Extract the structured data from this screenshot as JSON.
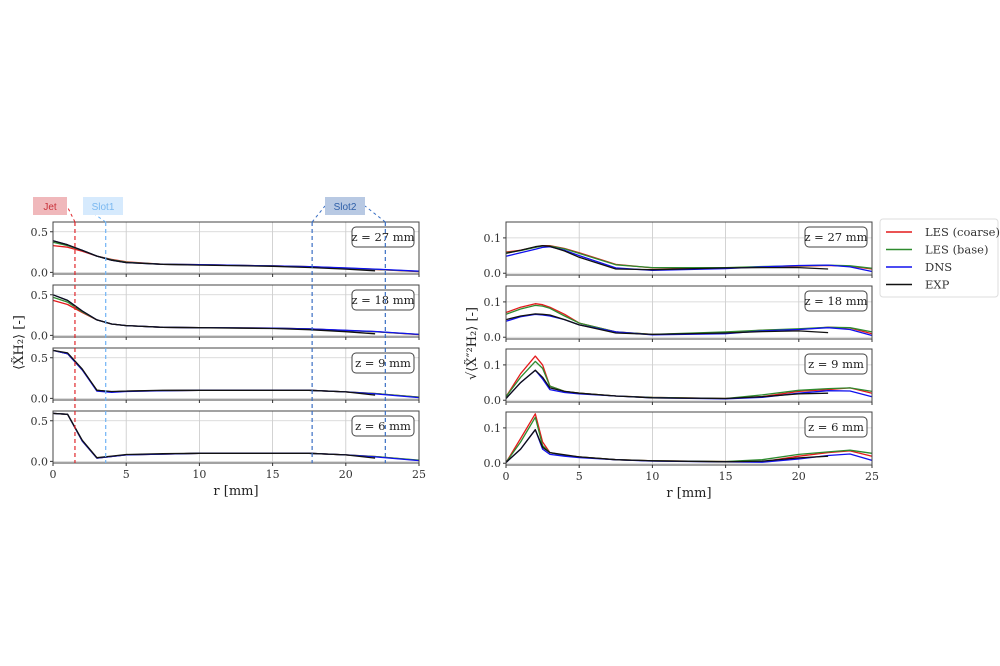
{
  "legend": {
    "placement": "right",
    "entries": [
      {
        "name": "LES (coarse)",
        "color": "#e41a1c"
      },
      {
        "name": "LES (base)",
        "color": "#2e8b2e"
      },
      {
        "name": "DNS",
        "color": "#1010ee"
      },
      {
        "name": "EXP",
        "color": "#111111"
      }
    ]
  },
  "annotations": [
    {
      "label": "Jet",
      "r": [
        1.5
      ],
      "color": "#e0262b",
      "box": "#f0b8bb",
      "text": "#c8323a"
    },
    {
      "label": "Slot1",
      "r": [
        3.6
      ],
      "color": "#6fb3f5",
      "box": "#d6eafd",
      "text": "#7ab8f0"
    },
    {
      "label": "Slot2",
      "r": [
        17.7,
        22.7
      ],
      "color": "#3a6fc4",
      "box": "#b8c9e3",
      "text": "#2e5fa8"
    }
  ],
  "chart_data": [
    {
      "type": "line",
      "xlabel": "r [mm]",
      "ylabel": "⟨X̃H₂⟩ [-]",
      "xlim": [
        0,
        25
      ],
      "ylim": [
        -0.02,
        0.62
      ],
      "xticks": [
        "0",
        "5",
        "10",
        "15",
        "20",
        "25"
      ],
      "yticks": [
        "0.0",
        "0.5"
      ],
      "grid": true,
      "x": [
        0,
        1,
        2,
        3,
        4,
        5,
        7.5,
        10,
        15,
        17.5,
        20,
        22,
        25
      ],
      "panels": [
        {
          "label": "z = 27 mm",
          "series": [
            {
              "name": "LES (coarse)",
              "values": [
                0.33,
                0.31,
                0.26,
                0.2,
                0.16,
                0.13,
                0.1,
                0.095,
                0.08,
                0.07,
                0.05,
                0.035,
                0.01
              ]
            },
            {
              "name": "LES (base)",
              "values": [
                0.37,
                0.33,
                0.27,
                0.2,
                0.155,
                0.125,
                0.1,
                0.095,
                0.08,
                0.07,
                0.052,
                0.038,
                0.012
              ]
            },
            {
              "name": "DNS",
              "values": [
                0.39,
                0.34,
                0.27,
                0.2,
                0.15,
                0.12,
                0.1,
                0.095,
                0.08,
                0.07,
                0.055,
                0.04,
                0.015
              ]
            },
            {
              "name": "EXP",
              "values": [
                0.39,
                0.34,
                0.27,
                0.2,
                0.15,
                0.12,
                0.1,
                0.09,
                0.075,
                0.06,
                0.04,
                0.02
              ]
            }
          ]
        },
        {
          "label": "z = 18 mm",
          "series": [
            {
              "name": "LES (coarse)",
              "values": [
                0.43,
                0.38,
                0.28,
                0.19,
                0.14,
                0.12,
                0.1,
                0.095,
                0.09,
                0.08,
                0.06,
                0.045,
                0.01
              ]
            },
            {
              "name": "LES (base)",
              "values": [
                0.47,
                0.41,
                0.29,
                0.19,
                0.14,
                0.12,
                0.1,
                0.095,
                0.09,
                0.08,
                0.06,
                0.045,
                0.012
              ]
            },
            {
              "name": "DNS",
              "values": [
                0.5,
                0.43,
                0.3,
                0.19,
                0.14,
                0.12,
                0.1,
                0.095,
                0.09,
                0.08,
                0.062,
                0.048,
                0.012
              ]
            },
            {
              "name": "EXP",
              "values": [
                0.5,
                0.43,
                0.3,
                0.19,
                0.14,
                0.12,
                0.1,
                0.095,
                0.085,
                0.07,
                0.045,
                0.02
              ]
            }
          ]
        },
        {
          "label": "z = 9 mm",
          "series": [
            {
              "name": "LES (coarse)",
              "values": [
                0.59,
                0.55,
                0.35,
                0.1,
                0.08,
                0.09,
                0.095,
                0.1,
                0.1,
                0.1,
                0.08,
                0.06,
                0.015
              ]
            },
            {
              "name": "LES (base)",
              "values": [
                0.59,
                0.55,
                0.35,
                0.1,
                0.08,
                0.09,
                0.095,
                0.1,
                0.1,
                0.1,
                0.08,
                0.06,
                0.015
              ]
            },
            {
              "name": "DNS",
              "values": [
                0.59,
                0.55,
                0.35,
                0.09,
                0.075,
                0.085,
                0.095,
                0.1,
                0.1,
                0.1,
                0.08,
                0.055,
                0.01
              ]
            },
            {
              "name": "EXP",
              "values": [
                0.59,
                0.56,
                0.36,
                0.1,
                0.085,
                0.09,
                0.1,
                0.1,
                0.1,
                0.1,
                0.08,
                0.04
              ]
            }
          ]
        },
        {
          "label": "z = 6 mm",
          "series": [
            {
              "name": "LES (coarse)",
              "values": [
                0.59,
                0.58,
                0.25,
                0.04,
                0.06,
                0.08,
                0.09,
                0.1,
                0.1,
                0.1,
                0.08,
                0.06,
                0.012
              ]
            },
            {
              "name": "LES (base)",
              "values": [
                0.59,
                0.58,
                0.25,
                0.04,
                0.06,
                0.08,
                0.09,
                0.1,
                0.1,
                0.1,
                0.08,
                0.06,
                0.015
              ]
            },
            {
              "name": "DNS",
              "values": [
                0.59,
                0.58,
                0.25,
                0.04,
                0.06,
                0.08,
                0.09,
                0.1,
                0.1,
                0.1,
                0.08,
                0.055,
                0.01
              ]
            },
            {
              "name": "EXP",
              "values": [
                0.59,
                0.58,
                0.26,
                0.045,
                0.065,
                0.085,
                0.095,
                0.1,
                0.1,
                0.1,
                0.08,
                0.04
              ]
            }
          ]
        }
      ]
    },
    {
      "type": "line",
      "xlabel": "r [mm]",
      "ylabel": "√⟨X̃″²H₂⟩ [-]",
      "xlim": [
        0,
        25
      ],
      "ylim": [
        -0.005,
        0.145
      ],
      "xticks": [
        "0",
        "5",
        "10",
        "15",
        "20",
        "25"
      ],
      "yticks": [
        "0.0",
        "0.1"
      ],
      "grid": true,
      "x": [
        0,
        1,
        2,
        2.5,
        3,
        4,
        5,
        7.5,
        10,
        15,
        17.5,
        20,
        22,
        23.5,
        25
      ],
      "panels": [
        {
          "label": "z = 27 mm",
          "series": [
            {
              "name": "LES (coarse)",
              "values": [
                0.06,
                0.065,
                0.074,
                0.078,
                0.078,
                0.07,
                0.058,
                0.025,
                0.015,
                0.015,
                0.018,
                0.02,
                0.022,
                0.02,
                0.012
              ]
            },
            {
              "name": "LES (base)",
              "values": [
                0.058,
                0.064,
                0.073,
                0.077,
                0.077,
                0.069,
                0.056,
                0.024,
                0.016,
                0.016,
                0.019,
                0.021,
                0.023,
                0.021,
                0.014
              ]
            },
            {
              "name": "DNS",
              "values": [
                0.048,
                0.058,
                0.068,
                0.073,
                0.075,
                0.065,
                0.05,
                0.015,
                0.008,
                0.013,
                0.018,
                0.022,
                0.023,
                0.018,
                0.005
              ]
            },
            {
              "name": "EXP",
              "values": [
                0.056,
                0.065,
                0.075,
                0.078,
                0.076,
                0.063,
                0.045,
                0.012,
                0.01,
                0.015,
                0.016,
                0.016,
                0.012
              ]
            }
          ]
        },
        {
          "label": "z = 18 mm",
          "series": [
            {
              "name": "LES (coarse)",
              "values": [
                0.07,
                0.085,
                0.095,
                0.092,
                0.085,
                0.065,
                0.04,
                0.015,
                0.008,
                0.012,
                0.02,
                0.022,
                0.028,
                0.026,
                0.01
              ]
            },
            {
              "name": "LES (base)",
              "values": [
                0.065,
                0.08,
                0.09,
                0.088,
                0.082,
                0.06,
                0.04,
                0.015,
                0.008,
                0.015,
                0.02,
                0.024,
                0.028,
                0.027,
                0.015
              ]
            },
            {
              "name": "DNS",
              "values": [
                0.045,
                0.058,
                0.065,
                0.063,
                0.06,
                0.05,
                0.035,
                0.015,
                0.007,
                0.01,
                0.018,
                0.022,
                0.027,
                0.022,
                0.005
              ]
            },
            {
              "name": "EXP",
              "values": [
                0.05,
                0.06,
                0.066,
                0.065,
                0.063,
                0.05,
                0.035,
                0.012,
                0.008,
                0.012,
                0.016,
                0.018,
                0.013
              ]
            }
          ]
        },
        {
          "label": "z = 9 mm",
          "series": [
            {
              "name": "LES (coarse)",
              "values": [
                0.01,
                0.075,
                0.125,
                0.1,
                0.04,
                0.025,
                0.02,
                0.012,
                0.008,
                0.005,
                0.01,
                0.025,
                0.03,
                0.035,
                0.02
              ]
            },
            {
              "name": "LES (base)",
              "values": [
                0.01,
                0.065,
                0.11,
                0.09,
                0.04,
                0.025,
                0.02,
                0.012,
                0.008,
                0.005,
                0.015,
                0.028,
                0.033,
                0.035,
                0.025
              ]
            },
            {
              "name": "DNS",
              "values": [
                0.005,
                0.05,
                0.085,
                0.06,
                0.03,
                0.022,
                0.018,
                0.012,
                0.007,
                0.004,
                0.008,
                0.02,
                0.027,
                0.026,
                0.01
              ]
            },
            {
              "name": "EXP",
              "values": [
                0.005,
                0.05,
                0.085,
                0.065,
                0.035,
                0.025,
                0.02,
                0.012,
                0.007,
                0.005,
                0.01,
                0.018,
                0.02
              ]
            }
          ]
        },
        {
          "label": "z = 6 mm",
          "series": [
            {
              "name": "LES (coarse)",
              "values": [
                0.002,
                0.07,
                0.14,
                0.06,
                0.03,
                0.022,
                0.018,
                0.01,
                0.007,
                0.005,
                0.004,
                0.02,
                0.03,
                0.035,
                0.02
              ]
            },
            {
              "name": "LES (base)",
              "values": [
                0.002,
                0.06,
                0.13,
                0.05,
                0.03,
                0.022,
                0.018,
                0.01,
                0.007,
                0.005,
                0.01,
                0.025,
                0.032,
                0.037,
                0.028
              ]
            },
            {
              "name": "DNS",
              "values": [
                0.002,
                0.04,
                0.095,
                0.04,
                0.025,
                0.02,
                0.016,
                0.01,
                0.006,
                0.004,
                0.003,
                0.012,
                0.022,
                0.026,
                0.008
              ]
            },
            {
              "name": "EXP",
              "values": [
                0.002,
                0.04,
                0.095,
                0.045,
                0.03,
                0.024,
                0.018,
                0.01,
                0.007,
                0.004,
                0.006,
                0.015,
                0.02
              ]
            }
          ]
        }
      ]
    }
  ]
}
